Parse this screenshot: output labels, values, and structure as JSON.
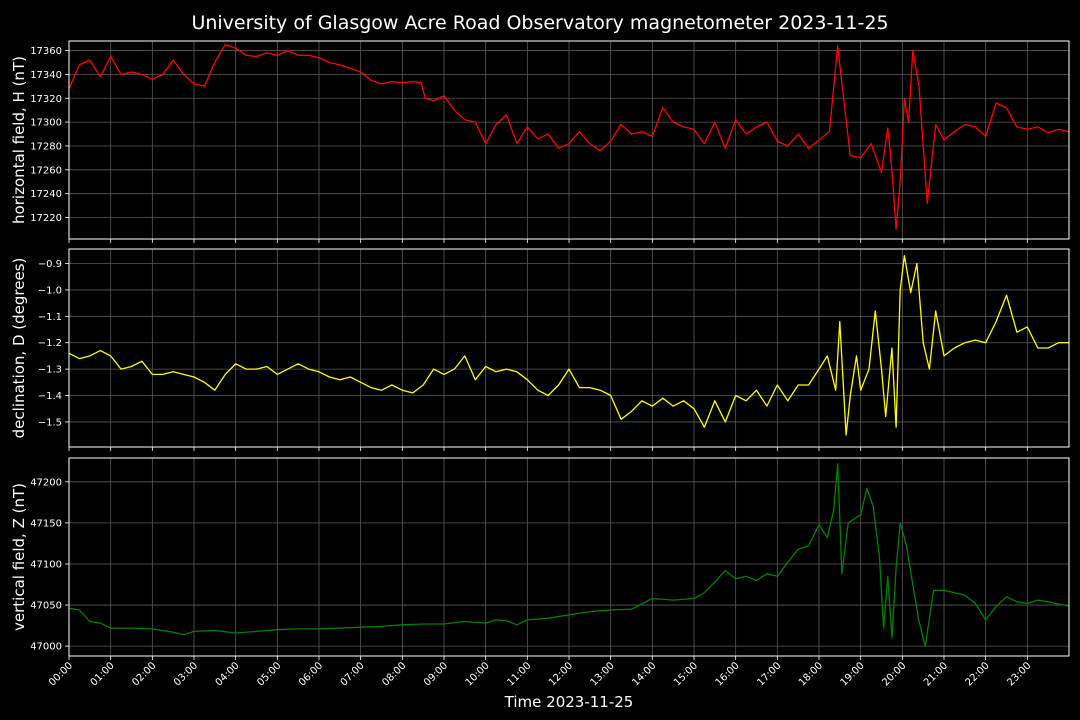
{
  "chart_data": [
    {
      "type": "line",
      "title": "University of Glasgow Acre Road Observatory magnetometer 2023-11-25",
      "ylabel": "horizontal field, H (nT)",
      "color": "#ff0000",
      "ylim": [
        17202,
        17368
      ],
      "yticks": [
        17220,
        17240,
        17260,
        17280,
        17300,
        17320,
        17340,
        17360
      ],
      "xlim": [
        0,
        24
      ],
      "x": [
        0,
        0.25,
        0.5,
        0.75,
        1.0,
        1.25,
        1.5,
        1.75,
        2.0,
        2.25,
        2.5,
        2.75,
        3.0,
        3.25,
        3.5,
        3.75,
        4.0,
        4.25,
        4.5,
        4.75,
        5.0,
        5.25,
        5.5,
        5.75,
        6.0,
        6.25,
        6.5,
        6.75,
        7.0,
        7.25,
        7.5,
        7.75,
        8.0,
        8.25,
        8.45,
        8.55,
        8.75,
        9.0,
        9.25,
        9.5,
        9.75,
        10.0,
        10.25,
        10.5,
        10.75,
        11.0,
        11.25,
        11.5,
        11.75,
        12.0,
        12.25,
        12.5,
        12.75,
        13.0,
        13.25,
        13.5,
        13.75,
        14.0,
        14.25,
        14.5,
        14.75,
        15.0,
        15.25,
        15.5,
        15.75,
        16.0,
        16.25,
        16.5,
        16.75,
        17.0,
        17.25,
        17.5,
        17.75,
        18.0,
        18.25,
        18.45,
        18.55,
        18.75,
        19.0,
        19.25,
        19.5,
        19.65,
        19.75,
        19.85,
        19.95,
        20.05,
        20.15,
        20.25,
        20.4,
        20.6,
        20.8,
        21.0,
        21.25,
        21.5,
        21.75,
        22.0,
        22.25,
        22.5,
        22.75,
        23.0,
        23.25,
        23.5,
        23.75,
        24.0
      ],
      "y": [
        17328,
        17348,
        17352,
        17338,
        17355,
        17340,
        17342,
        17340,
        17336,
        17340,
        17352,
        17340,
        17332,
        17330,
        17350,
        17365,
        17362,
        17356,
        17355,
        17358,
        17356,
        17360,
        17356,
        17356,
        17354,
        17350,
        17348,
        17345,
        17342,
        17335,
        17332,
        17334,
        17333,
        17334,
        17333,
        17320,
        17318,
        17322,
        17310,
        17302,
        17300,
        17282,
        17298,
        17306,
        17282,
        17296,
        17286,
        17290,
        17278,
        17282,
        17292,
        17282,
        17276,
        17284,
        17298,
        17290,
        17292,
        17288,
        17312,
        17300,
        17296,
        17294,
        17282,
        17300,
        17278,
        17302,
        17290,
        17296,
        17300,
        17284,
        17280,
        17290,
        17278,
        17285,
        17292,
        17364,
        17332,
        17272,
        17270,
        17282,
        17258,
        17295,
        17260,
        17210,
        17250,
        17320,
        17300,
        17360,
        17330,
        17232,
        17298,
        17285,
        17292,
        17298,
        17296,
        17288,
        17316,
        17312,
        17296,
        17294,
        17296,
        17291,
        17294,
        17292
      ]
    },
    {
      "type": "line",
      "ylabel": "declination, D (degrees)",
      "color": "#ffff00",
      "ylim": [
        -1.595,
        -0.845
      ],
      "yticks": [
        -0.9,
        -1.0,
        -1.1,
        -1.2,
        -1.3,
        -1.4,
        -1.5
      ],
      "xlim": [
        0,
        24
      ],
      "x": [
        0,
        0.25,
        0.5,
        0.75,
        1.0,
        1.25,
        1.5,
        1.75,
        2.0,
        2.25,
        2.5,
        2.75,
        3.0,
        3.25,
        3.5,
        3.75,
        4.0,
        4.25,
        4.5,
        4.75,
        5.0,
        5.25,
        5.5,
        5.75,
        6.0,
        6.25,
        6.5,
        6.75,
        7.0,
        7.25,
        7.5,
        7.75,
        8.0,
        8.25,
        8.5,
        8.75,
        9.0,
        9.25,
        9.5,
        9.75,
        10.0,
        10.25,
        10.5,
        10.75,
        11.0,
        11.25,
        11.5,
        11.75,
        12.0,
        12.25,
        12.5,
        12.75,
        13.0,
        13.25,
        13.5,
        13.75,
        14.0,
        14.25,
        14.5,
        14.75,
        15.0,
        15.25,
        15.5,
        15.75,
        16.0,
        16.25,
        16.5,
        16.75,
        17.0,
        17.25,
        17.5,
        17.75,
        18.0,
        18.2,
        18.4,
        18.5,
        18.65,
        18.75,
        18.9,
        19.0,
        19.2,
        19.35,
        19.5,
        19.6,
        19.75,
        19.85,
        19.95,
        20.05,
        20.2,
        20.35,
        20.5,
        20.65,
        20.8,
        21.0,
        21.25,
        21.5,
        21.75,
        22.0,
        22.25,
        22.5,
        22.75,
        23.0,
        23.25,
        23.5,
        23.75,
        24.0
      ],
      "y": [
        -1.24,
        -1.26,
        -1.25,
        -1.23,
        -1.25,
        -1.3,
        -1.29,
        -1.27,
        -1.32,
        -1.32,
        -1.31,
        -1.32,
        -1.33,
        -1.35,
        -1.38,
        -1.32,
        -1.28,
        -1.3,
        -1.3,
        -1.29,
        -1.32,
        -1.3,
        -1.28,
        -1.3,
        -1.31,
        -1.33,
        -1.34,
        -1.33,
        -1.35,
        -1.37,
        -1.38,
        -1.36,
        -1.38,
        -1.39,
        -1.36,
        -1.3,
        -1.32,
        -1.3,
        -1.25,
        -1.34,
        -1.29,
        -1.31,
        -1.3,
        -1.31,
        -1.34,
        -1.38,
        -1.4,
        -1.36,
        -1.3,
        -1.37,
        -1.37,
        -1.38,
        -1.4,
        -1.49,
        -1.46,
        -1.42,
        -1.44,
        -1.41,
        -1.44,
        -1.42,
        -1.45,
        -1.52,
        -1.42,
        -1.5,
        -1.4,
        -1.42,
        -1.38,
        -1.44,
        -1.36,
        -1.42,
        -1.36,
        -1.36,
        -1.3,
        -1.25,
        -1.38,
        -1.12,
        -1.55,
        -1.4,
        -1.25,
        -1.38,
        -1.3,
        -1.08,
        -1.3,
        -1.48,
        -1.22,
        -1.52,
        -1.0,
        -0.87,
        -1.01,
        -0.9,
        -1.2,
        -1.3,
        -1.08,
        -1.25,
        -1.22,
        -1.2,
        -1.19,
        -1.2,
        -1.12,
        -1.02,
        -1.16,
        -1.14,
        -1.22,
        -1.22,
        -1.2,
        -1.2
      ]
    },
    {
      "type": "line",
      "ylabel": "vertical field, Z (nT)",
      "color": "#008000",
      "ylim": [
        46988,
        47229
      ],
      "yticks": [
        47000,
        47050,
        47100,
        47150,
        47200
      ],
      "xlim": [
        0,
        24
      ],
      "xlabel": "Time 2023-11-25",
      "xticks": [
        "00:00",
        "01:00",
        "02:00",
        "03:00",
        "04:00",
        "05:00",
        "06:00",
        "07:00",
        "08:00",
        "09:00",
        "10:00",
        "11:00",
        "12:00",
        "13:00",
        "14:00",
        "15:00",
        "16:00",
        "17:00",
        "18:00",
        "19:00",
        "20:00",
        "21:00",
        "22:00",
        "23:00"
      ],
      "x": [
        0,
        0.25,
        0.5,
        0.75,
        1.0,
        1.5,
        2.0,
        2.5,
        2.75,
        3.0,
        3.5,
        4.0,
        4.5,
        5.0,
        5.5,
        6.0,
        6.5,
        7.0,
        7.5,
        8.0,
        8.5,
        9.0,
        9.5,
        10.0,
        10.25,
        10.5,
        10.75,
        11.0,
        11.5,
        12.0,
        12.5,
        13.0,
        13.5,
        14.0,
        14.5,
        15.0,
        15.25,
        15.5,
        15.75,
        16.0,
        16.25,
        16.5,
        16.75,
        17.0,
        17.25,
        17.5,
        17.75,
        18.0,
        18.2,
        18.35,
        18.45,
        18.55,
        18.7,
        18.85,
        19.0,
        19.15,
        19.3,
        19.45,
        19.55,
        19.65,
        19.75,
        19.85,
        19.95,
        20.1,
        20.25,
        20.4,
        20.55,
        20.75,
        21.0,
        21.25,
        21.5,
        21.75,
        22.0,
        22.25,
        22.5,
        22.75,
        23.0,
        23.25,
        23.5,
        23.75,
        24.0
      ],
      "y": [
        47046,
        47044,
        47030,
        47028,
        47022,
        47022,
        47021,
        47017,
        47014,
        47018,
        47019,
        47016,
        47018,
        47020,
        47021,
        47021,
        47022,
        47023,
        47024,
        47026,
        47027,
        47027,
        47030,
        47028,
        47032,
        47031,
        47026,
        47032,
        47034,
        47038,
        47042,
        47044,
        47045,
        47058,
        47056,
        47058,
        47065,
        47078,
        47092,
        47082,
        47085,
        47080,
        47088,
        47085,
        47102,
        47118,
        47122,
        47148,
        47132,
        47165,
        47222,
        47088,
        47150,
        47155,
        47160,
        47192,
        47170,
        47110,
        47022,
        47085,
        47010,
        47095,
        47150,
        47122,
        47075,
        47030,
        47000,
        47068,
        47068,
        47065,
        47062,
        47052,
        47032,
        47048,
        47060,
        47054,
        47052,
        47056,
        47054,
        47051,
        47049
      ]
    }
  ]
}
